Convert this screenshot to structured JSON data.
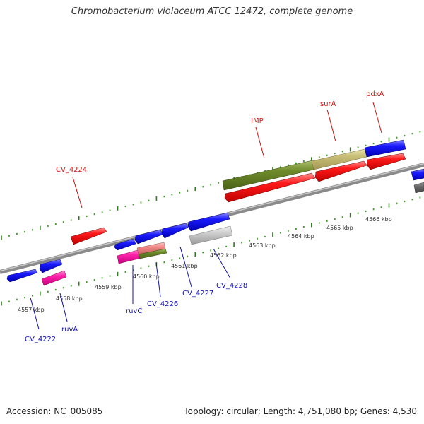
{
  "title": "Chromobacterium violaceum ATCC 12472, complete genome",
  "footer": {
    "accession": "Accession: NC_005085",
    "topology": "Topology: circular; Length: 4,751,080 bp; Genes: 4,530"
  },
  "colors": {
    "backbone": "#7a7a7a",
    "tick_major": "#2e7d1e",
    "tick_minor": "#3f9a2a",
    "label_top": "#dd1111",
    "label_bottom": "#1111bb",
    "leader_top": "#cc1111",
    "leader_bottom": "#1111aa"
  },
  "kbp_labels": [
    "4557 kbp",
    "4558 kbp",
    "4559 kbp",
    "4560 kbp",
    "4561 kbp",
    "4562 kbp",
    "4563 kbp",
    "4564 kbp",
    "4565 kbp",
    "4566 kbp"
  ],
  "top_labels": [
    {
      "text": "CV_4224"
    },
    {
      "text": "IMP"
    },
    {
      "text": "surA"
    },
    {
      "text": "pdxA"
    }
  ],
  "bottom_labels": [
    {
      "text": "CV_4222"
    },
    {
      "text": "ruvA"
    },
    {
      "text": "ruvC"
    },
    {
      "text": "CV_4226"
    },
    {
      "text": "CV_4227"
    },
    {
      "text": "CV_4228"
    }
  ],
  "features": [
    {
      "name": "gene-ruvA",
      "color": "blue"
    },
    {
      "name": "gene-ruvC",
      "color": "blue"
    },
    {
      "name": "gene-CV_4226",
      "color": "blue"
    },
    {
      "name": "gene-CV_4227",
      "color": "blue"
    },
    {
      "name": "gene-CV_4228",
      "color": "blue"
    },
    {
      "name": "gene-CV_4224",
      "color": "red"
    },
    {
      "name": "gene-IMP",
      "color": "red"
    },
    {
      "name": "gene-surA",
      "color": "red"
    },
    {
      "name": "gene-pdxA",
      "color": "red"
    },
    {
      "name": "gene-edge-blue",
      "color": "blue"
    },
    {
      "name": "gene-edge-gray",
      "color": "gray"
    },
    {
      "name": "gene-CV_4222",
      "color": "blue"
    },
    {
      "name": "gene-ruvA-pink",
      "color": "magenta"
    },
    {
      "name": "gene-ruvC-pink",
      "color": "magenta"
    },
    {
      "name": "gene-CV_4226-salmon",
      "color": "salmon"
    },
    {
      "name": "gene-CV_4226-olive",
      "color": "olive"
    },
    {
      "name": "gene-CV_4228-gray",
      "color": "silver"
    },
    {
      "name": "gene-IMP-olive",
      "color": "olive"
    },
    {
      "name": "gene-surA-khaki",
      "color": "khaki"
    },
    {
      "name": "gene-pdxA-blue",
      "color": "blue"
    }
  ]
}
